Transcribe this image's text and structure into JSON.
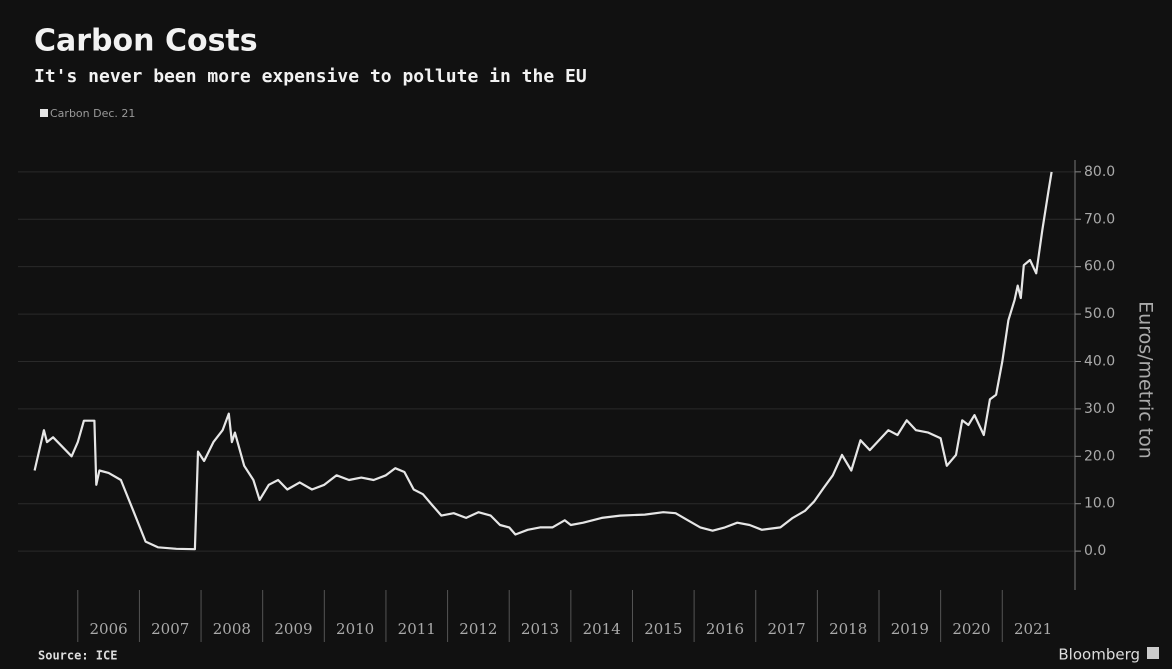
{
  "chart_data": {
    "type": "line",
    "title": "Carbon Costs",
    "subtitle": "It's never been more expensive to pollute in the EU",
    "y_axis_label": "Euros/metric ton",
    "source": "Source: ICE",
    "brand": "Bloomberg",
    "x": [
      2005.3,
      2005.45,
      2005.5,
      2005.6,
      2005.75,
      2005.9,
      2006.0,
      2006.1,
      2006.27,
      2006.3,
      2006.35,
      2006.5,
      2006.7,
      2006.9,
      2007.1,
      2007.3,
      2007.6,
      2007.9,
      2007.95,
      2008.05,
      2008.2,
      2008.35,
      2008.45,
      2008.5,
      2008.55,
      2008.7,
      2008.85,
      2008.95,
      2009.1,
      2009.25,
      2009.4,
      2009.6,
      2009.8,
      2010.0,
      2010.2,
      2010.4,
      2010.6,
      2010.8,
      2011.0,
      2011.15,
      2011.3,
      2011.45,
      2011.6,
      2011.75,
      2011.9,
      2012.1,
      2012.3,
      2012.5,
      2012.7,
      2012.85,
      2013.0,
      2013.1,
      2013.3,
      2013.5,
      2013.7,
      2013.9,
      2014.0,
      2014.2,
      2014.5,
      2014.8,
      2015.2,
      2015.5,
      2015.7,
      2015.9,
      2016.1,
      2016.3,
      2016.5,
      2016.7,
      2016.9,
      2017.1,
      2017.4,
      2017.6,
      2017.8,
      2017.95,
      2018.1,
      2018.25,
      2018.4,
      2018.55,
      2018.7,
      2018.85,
      2019.0,
      2019.15,
      2019.3,
      2019.45,
      2019.6,
      2019.8,
      2020.0,
      2020.1,
      2020.25,
      2020.35,
      2020.45,
      2020.55,
      2020.7,
      2020.8,
      2020.9,
      2021.0,
      2021.1,
      2021.2,
      2021.25,
      2021.3,
      2021.35,
      2021.45,
      2021.55,
      2021.65,
      2021.75,
      2021.8
    ],
    "series": [
      {
        "name": "Carbon Dec. 21",
        "color": "#e6e6e6",
        "values": [
          17,
          25.5,
          23,
          24,
          22,
          20,
          23,
          27.5,
          27.5,
          14,
          17,
          16.5,
          15,
          8.5,
          2,
          0.8,
          0.5,
          0.4,
          21,
          19,
          23,
          25.5,
          29,
          23,
          25,
          18,
          15,
          10.8,
          14,
          15,
          13,
          14.5,
          13,
          14,
          16,
          15,
          15.5,
          15,
          16,
          17.5,
          16.7,
          13,
          12,
          9.7,
          7.5,
          8,
          7,
          8.2,
          7.5,
          5.5,
          5,
          3.5,
          4.5,
          5,
          5,
          6.5,
          5.5,
          6,
          7,
          7.5,
          7.7,
          8.2,
          8,
          6.5,
          5,
          4.3,
          5,
          6,
          5.5,
          4.5,
          5,
          7,
          8.5,
          10.5,
          13.3,
          16,
          20.3,
          17,
          23.4,
          21.3,
          23.4,
          25.5,
          24.5,
          27.6,
          25.5,
          25,
          23.8,
          18,
          20.3,
          27.6,
          26.6,
          28.7,
          24.5,
          32,
          33,
          40,
          48.7,
          53,
          56,
          53.4,
          60.3,
          61.4,
          58.6,
          67.7,
          76,
          80
        ]
      }
    ],
    "xlim": [
      2005.03,
      2022.18
    ],
    "xticks": [
      2006,
      2007,
      2008,
      2009,
      2010,
      2011,
      2012,
      2013,
      2014,
      2015,
      2016,
      2017,
      2018,
      2019,
      2020,
      2021
    ],
    "ylim": [
      -8.2,
      82.5
    ],
    "yticks": [
      {
        "value": 0,
        "label": "0.0"
      },
      {
        "value": 10,
        "label": "10.0"
      },
      {
        "value": 20,
        "label": "20.0"
      },
      {
        "value": 30,
        "label": "30.0"
      },
      {
        "value": 40,
        "label": "40.0"
      },
      {
        "value": 50,
        "label": "50.0"
      },
      {
        "value": 60,
        "label": "60.0"
      },
      {
        "value": 70,
        "label": "70.0"
      },
      {
        "value": 80,
        "label": "80.0"
      }
    ],
    "grid": true
  }
}
